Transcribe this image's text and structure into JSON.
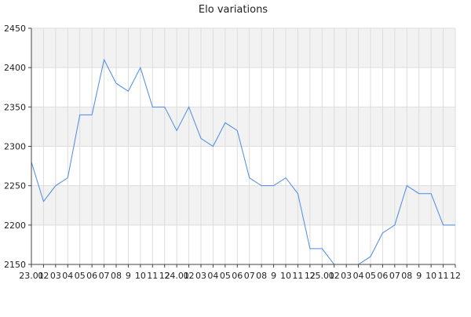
{
  "chart_data": {
    "type": "line",
    "title": "Elo variations",
    "xlabel": "",
    "ylabel": "",
    "ylim": [
      2150,
      2450
    ],
    "y_ticks": [
      2150,
      2200,
      2250,
      2300,
      2350,
      2400,
      2450
    ],
    "x_tick_labels": [
      "23.01",
      "02",
      "03",
      "04",
      "05",
      "06",
      "07",
      "08",
      "9",
      "10",
      "11",
      "12",
      "24.01",
      "02",
      "03",
      "04",
      "05",
      "06",
      "07",
      "08",
      "9",
      "10",
      "11",
      "12",
      "25.01",
      "02",
      "03",
      "04",
      "05",
      "06",
      "07",
      "08",
      "9",
      "10",
      "11",
      "12"
    ],
    "grid": true,
    "alternating_bands": true,
    "colors": {
      "line": "#4a8ae8",
      "band": "#f2f2f2",
      "grid": "#dddddd",
      "axis": "#444444"
    },
    "series": [
      {
        "values": [
          2280,
          2230,
          2250,
          2260,
          2340,
          2340,
          2410,
          2380,
          2370,
          2400,
          2350,
          2350,
          2320,
          2350,
          2310,
          2300,
          2330,
          2320,
          2260,
          2250,
          2250,
          2260,
          2240,
          2170,
          2170,
          2150,
          2150,
          2150,
          2160,
          2190,
          2200,
          2250,
          2240,
          2240,
          2200,
          2200
        ]
      }
    ]
  }
}
